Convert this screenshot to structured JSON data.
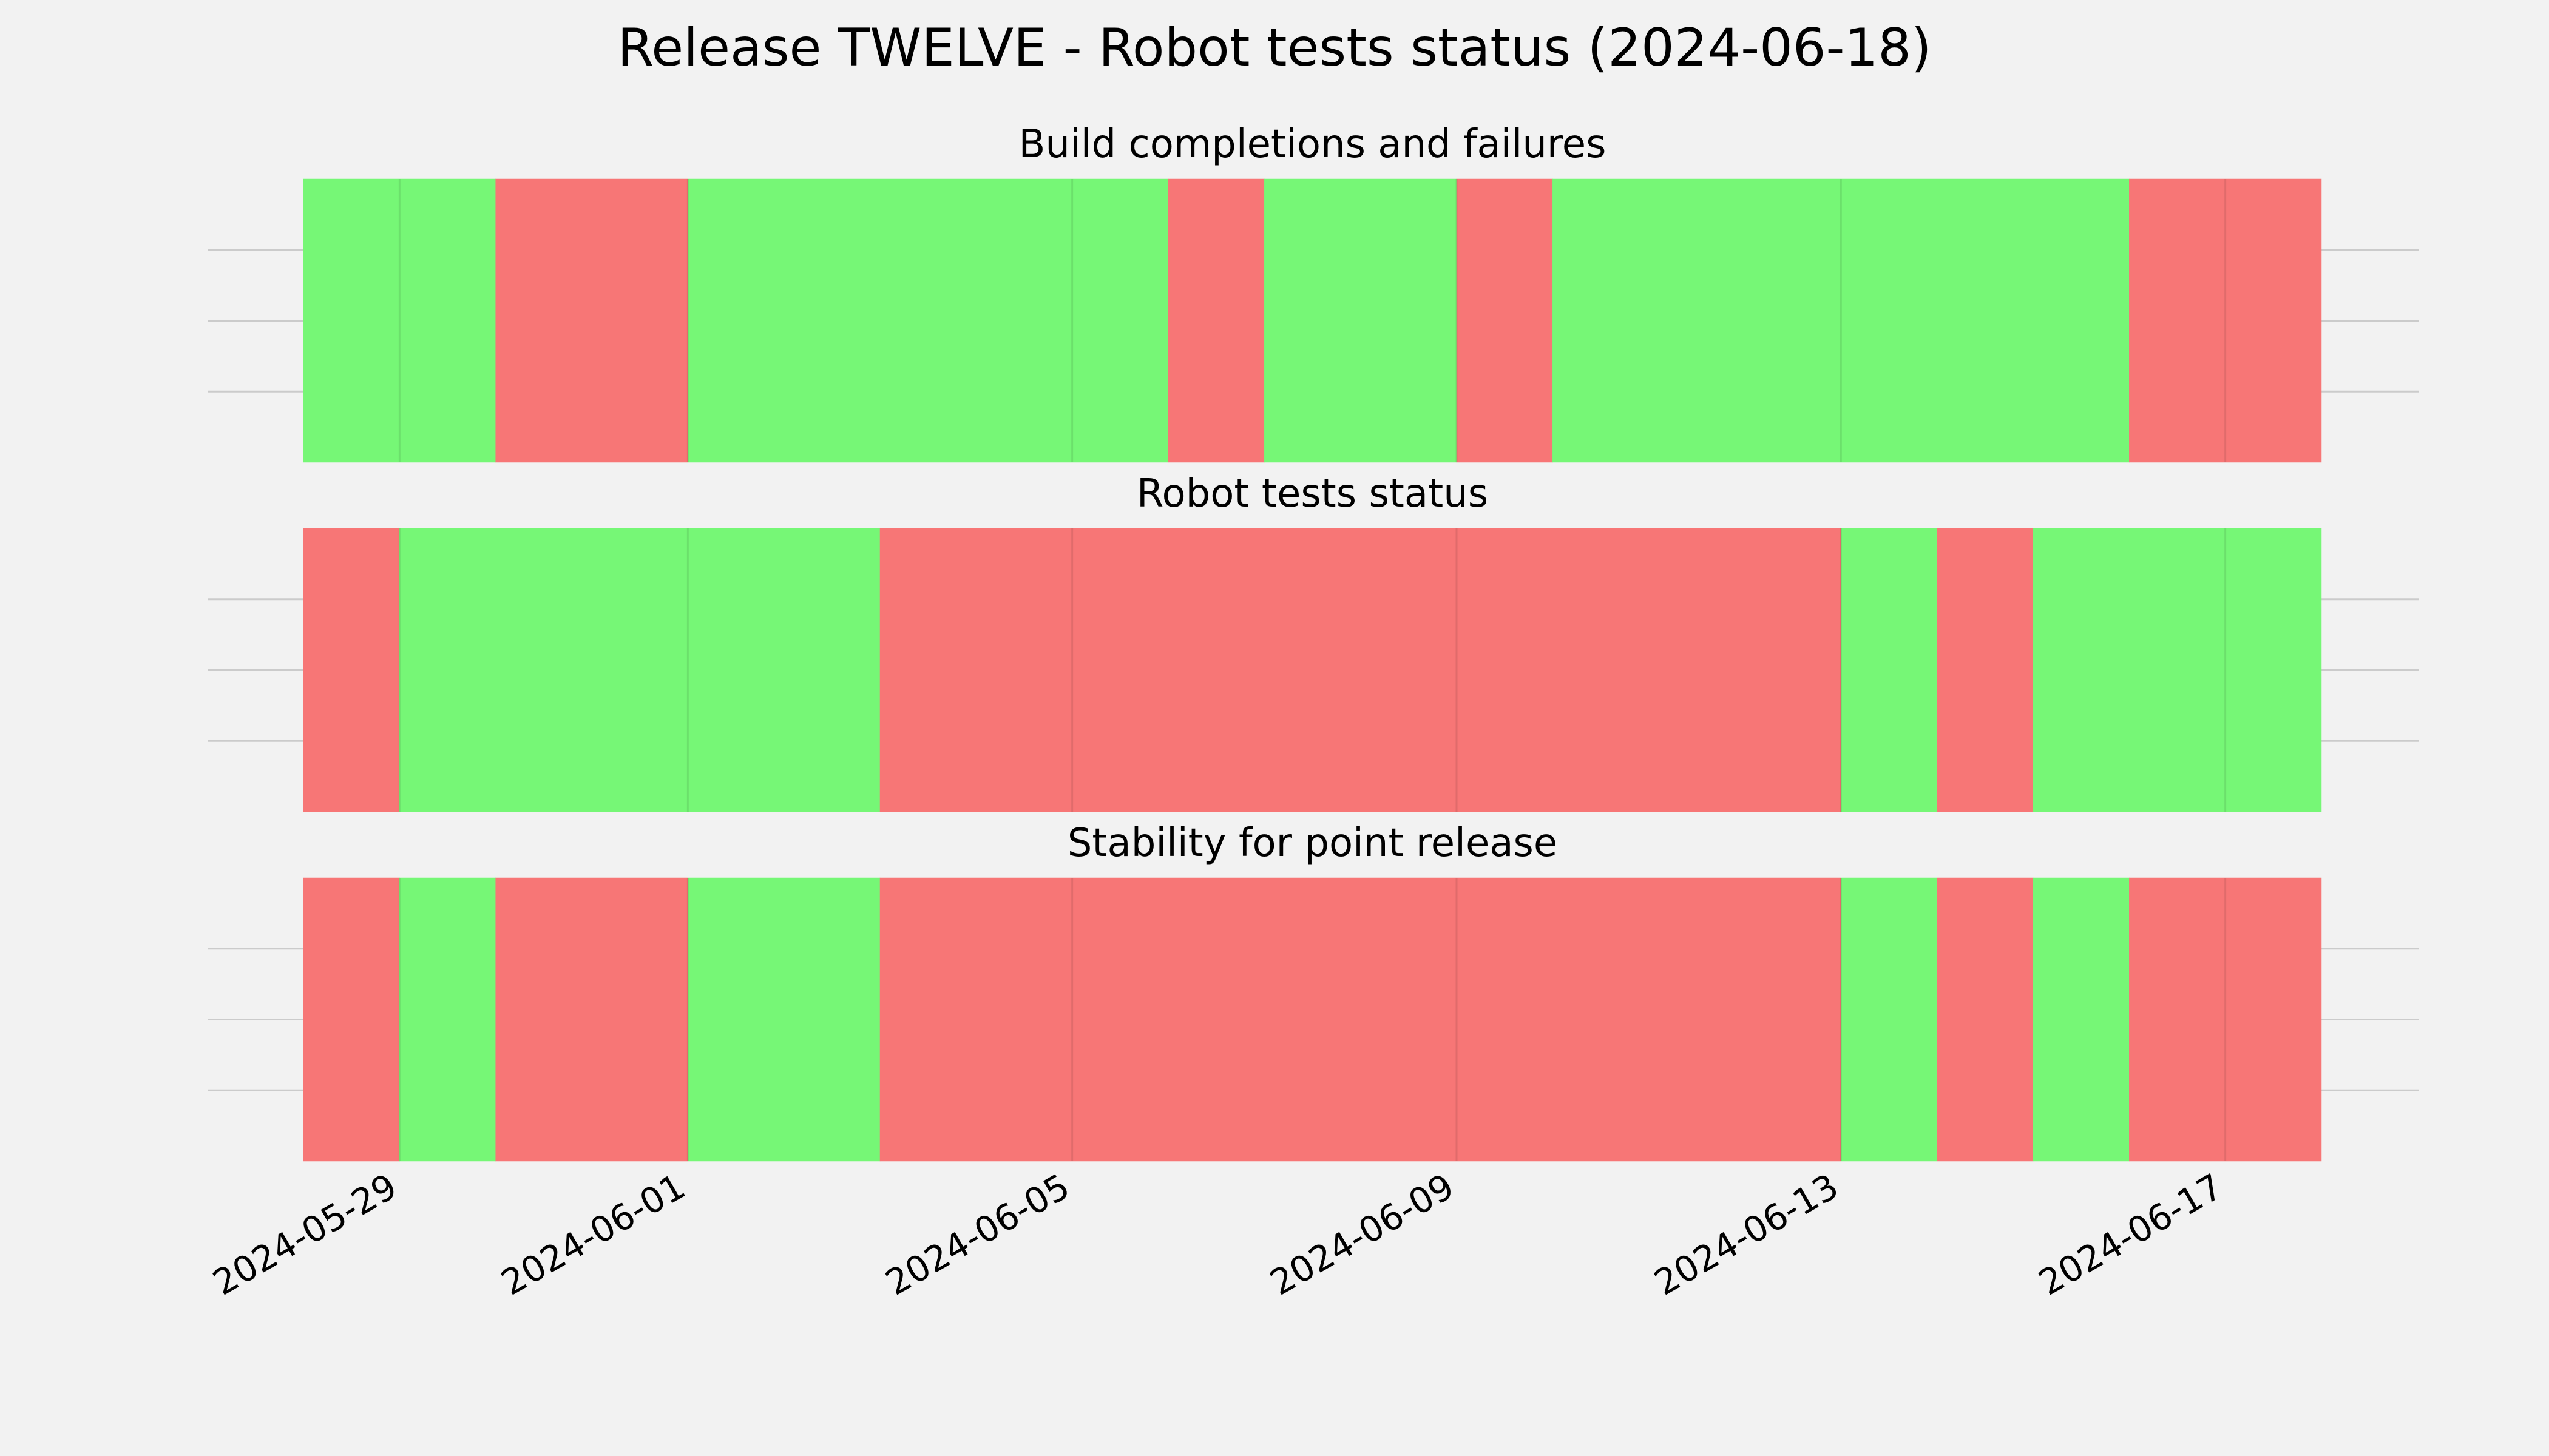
{
  "chart_data": {
    "type": "bar",
    "title": "Release TWELVE - Robot tests status (2024-06-18)",
    "x_axis": {
      "type": "date",
      "range": [
        "2024-05-28",
        "2024-06-18"
      ],
      "ticks": [
        "2024-05-29",
        "2024-06-01",
        "2024-06-05",
        "2024-06-09",
        "2024-06-13",
        "2024-06-17"
      ]
    },
    "status_colors": {
      "pass": "#76f776",
      "fail": "#f77676"
    },
    "grid": true,
    "panels": [
      {
        "title": "Build completions and failures",
        "segments": [
          {
            "start": "2024-05-28",
            "end": "2024-05-30",
            "status": "pass"
          },
          {
            "start": "2024-05-30",
            "end": "2024-06-01",
            "status": "fail"
          },
          {
            "start": "2024-06-01",
            "end": "2024-06-06",
            "status": "pass"
          },
          {
            "start": "2024-06-06",
            "end": "2024-06-07",
            "status": "fail"
          },
          {
            "start": "2024-06-07",
            "end": "2024-06-09",
            "status": "pass"
          },
          {
            "start": "2024-06-09",
            "end": "2024-06-10",
            "status": "fail"
          },
          {
            "start": "2024-06-10",
            "end": "2024-06-16",
            "status": "pass"
          },
          {
            "start": "2024-06-16",
            "end": "2024-06-18",
            "status": "fail"
          }
        ]
      },
      {
        "title": "Robot tests status",
        "segments": [
          {
            "start": "2024-05-28",
            "end": "2024-05-29",
            "status": "fail"
          },
          {
            "start": "2024-05-29",
            "end": "2024-06-03",
            "status": "pass"
          },
          {
            "start": "2024-06-03",
            "end": "2024-06-13",
            "status": "fail"
          },
          {
            "start": "2024-06-13",
            "end": "2024-06-14",
            "status": "pass"
          },
          {
            "start": "2024-06-14",
            "end": "2024-06-15",
            "status": "fail"
          },
          {
            "start": "2024-06-15",
            "end": "2024-06-18",
            "status": "pass"
          }
        ]
      },
      {
        "title": "Stability for point release",
        "segments": [
          {
            "start": "2024-05-28",
            "end": "2024-05-29",
            "status": "fail"
          },
          {
            "start": "2024-05-29",
            "end": "2024-05-30",
            "status": "pass"
          },
          {
            "start": "2024-05-30",
            "end": "2024-06-01",
            "status": "fail"
          },
          {
            "start": "2024-06-01",
            "end": "2024-06-03",
            "status": "pass"
          },
          {
            "start": "2024-06-03",
            "end": "2024-06-13",
            "status": "fail"
          },
          {
            "start": "2024-06-13",
            "end": "2024-06-14",
            "status": "pass"
          },
          {
            "start": "2024-06-14",
            "end": "2024-06-15",
            "status": "fail"
          },
          {
            "start": "2024-06-15",
            "end": "2024-06-16",
            "status": "pass"
          },
          {
            "start": "2024-06-16",
            "end": "2024-06-18",
            "status": "fail"
          }
        ]
      }
    ]
  }
}
